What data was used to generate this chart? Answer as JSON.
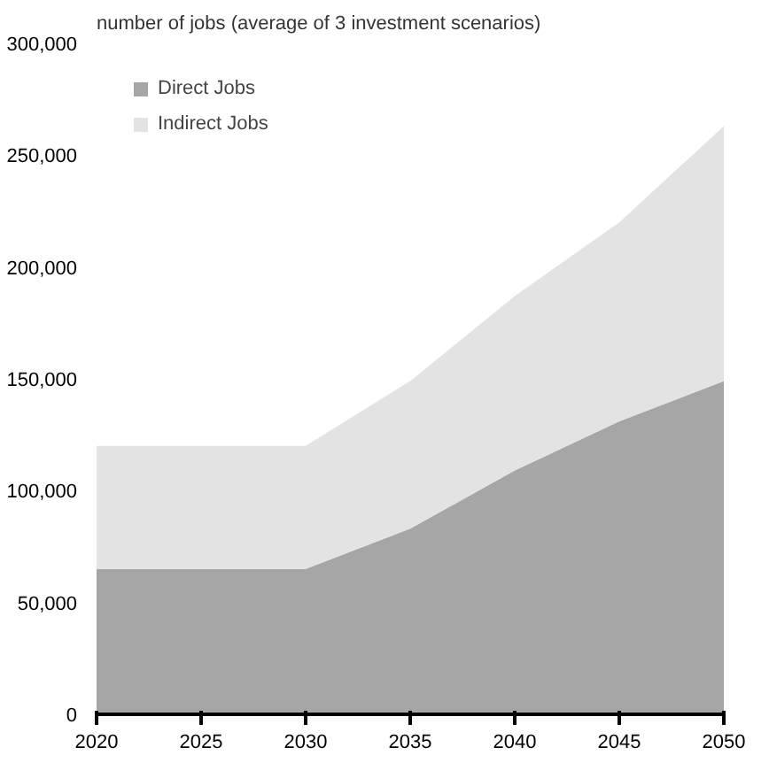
{
  "chart_data": {
    "type": "area",
    "title": "number of jobs (average of 3 investment scenarios)",
    "x": [
      2020,
      2025,
      2030,
      2035,
      2040,
      2045,
      2050
    ],
    "stacked": true,
    "series": [
      {
        "name": "Direct Jobs",
        "color": "#a6a6a6",
        "values": [
          65000,
          65000,
          65000,
          83000,
          109000,
          131000,
          149000
        ]
      },
      {
        "name": "Indirect Jobs",
        "color": "#e3e3e3",
        "values": [
          55000,
          55000,
          55000,
          66000,
          78000,
          89000,
          114000
        ]
      }
    ],
    "xlim": [
      2020,
      2050
    ],
    "xticks": [
      2020,
      2025,
      2030,
      2035,
      2040,
      2045,
      2050
    ],
    "ylim": [
      0,
      300000
    ],
    "yticks": [
      {
        "value": 0,
        "label": "0"
      },
      {
        "value": 50000,
        "label": "50,000"
      },
      {
        "value": 100000,
        "label": "100,000"
      },
      {
        "value": 150000,
        "label": "150,000"
      },
      {
        "value": 200000,
        "label": "200,000"
      },
      {
        "value": 250000,
        "label": "250,000"
      },
      {
        "value": 300000,
        "label": "300,000"
      }
    ],
    "grid": false,
    "legend": "top left"
  }
}
